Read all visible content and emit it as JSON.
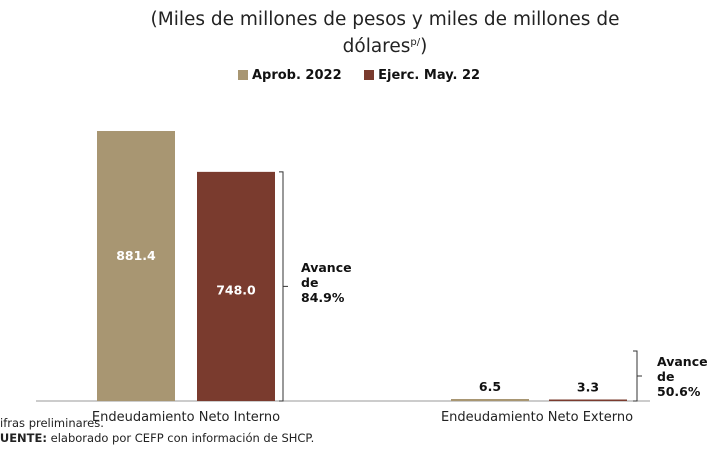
{
  "title_line1": "(Miles de millones de pesos y miles de millones de",
  "title_line2": "dólares",
  "title_sup": "p/",
  "title_close": ")",
  "footnote1": "Cifras preliminares.",
  "source_label": "FUENTE:",
  "source_text": " elaborado por CEFP con información de SHCP.",
  "colors": {
    "aprob": "#a89672",
    "ejerc": "#7a3b2e",
    "axis": "#9a9a9a",
    "bracket": "#333333"
  },
  "chart_data": {
    "type": "bar",
    "title": "(Miles de millones de pesos y miles de millones de dólaresp/)",
    "categories": [
      "Endeudamiento Neto Interno",
      "Endeudamiento Neto Externo"
    ],
    "series": [
      {
        "name": "Aprob. 2022",
        "values": [
          881.4,
          6.5
        ],
        "labels": [
          "881.4",
          "6.5"
        ]
      },
      {
        "name": "Ejerc. May. 22",
        "values": [
          748.0,
          3.3
        ],
        "labels": [
          "748.0",
          "3.3"
        ]
      }
    ],
    "annotations": [
      {
        "category": "Endeudamiento Neto Interno",
        "lines": [
          "Avance",
          "de",
          "84.9%"
        ]
      },
      {
        "category": "Endeudamiento Neto Externo",
        "lines": [
          "Avance",
          "de",
          "50.6%"
        ]
      }
    ],
    "legend_position": "top"
  }
}
